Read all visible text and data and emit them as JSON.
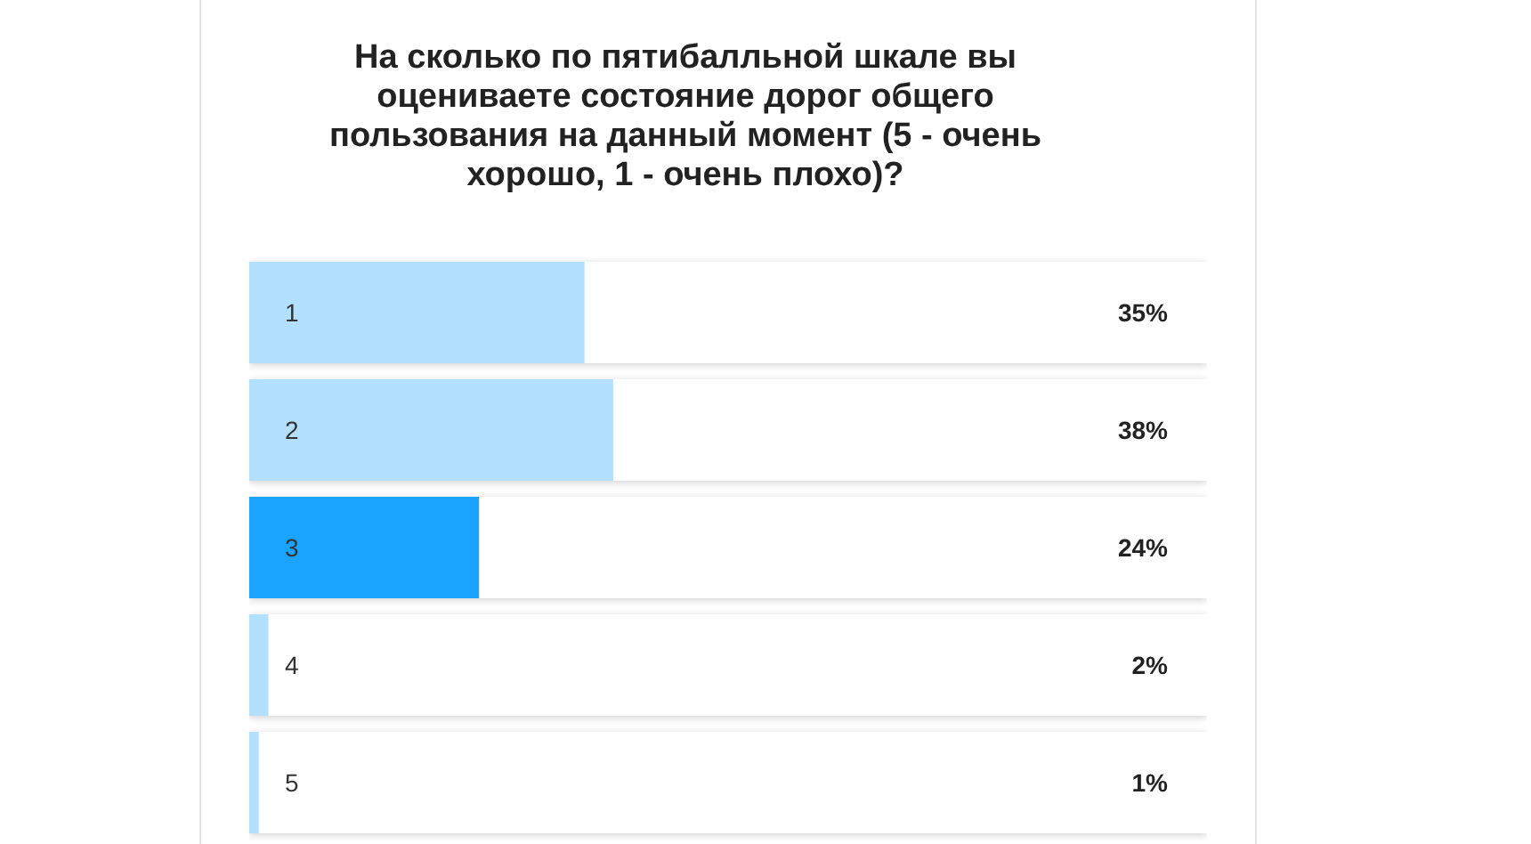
{
  "chart_data": {
    "type": "bar",
    "orientation": "horizontal",
    "title": "На сколько по пятибалльной шкале вы оцениваете состояние дорог общего пользования на данный момент (5 - очень хорошо, 1 - очень плохо)?",
    "categories": [
      "1",
      "2",
      "3",
      "4",
      "5"
    ],
    "values": [
      35,
      38,
      24,
      2,
      1
    ],
    "colors": [
      "#b3e0ff",
      "#b3e0ff",
      "#1aa3ff",
      "#b3e0ff",
      "#b3e0ff"
    ],
    "value_labels": [
      "35%",
      "38%",
      "24%",
      "2%",
      "1%"
    ],
    "grid": false,
    "legend": false
  }
}
